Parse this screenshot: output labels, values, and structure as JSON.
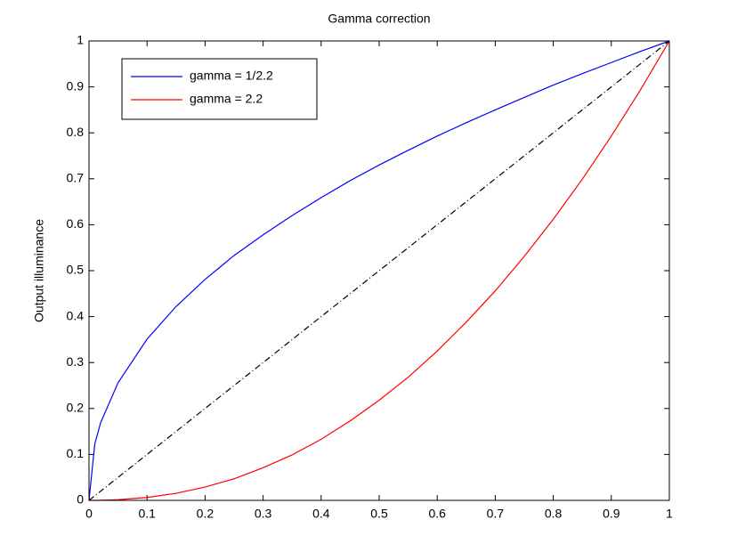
{
  "chart_data": {
    "type": "line",
    "title": "Gamma correction",
    "y_label": "Output illuminance",
    "x": [
      0,
      0.01,
      0.02,
      0.05,
      0.1,
      0.15,
      0.2,
      0.25,
      0.3,
      0.35,
      0.4,
      0.45,
      0.5,
      0.55,
      0.6,
      0.65,
      0.7,
      0.75,
      0.8,
      0.85,
      0.9,
      0.95,
      1
    ],
    "series": [
      {
        "name": "gamma = 1/2.2",
        "color": "#0000ff",
        "linestyle": "solid",
        "values": [
          0,
          0.123,
          0.169,
          0.256,
          0.351,
          0.422,
          0.481,
          0.533,
          0.578,
          0.62,
          0.659,
          0.696,
          0.73,
          0.762,
          0.793,
          0.822,
          0.85,
          0.877,
          0.904,
          0.929,
          0.953,
          0.977,
          1
        ]
      },
      {
        "name": "gamma = 2.2",
        "color": "#ff0000",
        "linestyle": "solid",
        "values": [
          0,
          0,
          0.0002,
          0.0014,
          0.0063,
          0.0154,
          0.029,
          0.047,
          0.071,
          0.099,
          0.133,
          0.173,
          0.218,
          0.268,
          0.325,
          0.388,
          0.456,
          0.531,
          0.612,
          0.699,
          0.793,
          0.893,
          1
        ]
      },
      {
        "color": "#000000",
        "linestyle": "dashdot",
        "values": [
          0,
          0.01,
          0.02,
          0.05,
          0.1,
          0.15,
          0.2,
          0.25,
          0.3,
          0.35,
          0.4,
          0.45,
          0.5,
          0.55,
          0.6,
          0.65,
          0.7,
          0.75,
          0.8,
          0.85,
          0.9,
          0.95,
          1
        ]
      }
    ],
    "xlim": [
      0,
      1
    ],
    "ylim": [
      0,
      1
    ],
    "xticks": [
      0,
      0.1,
      0.2,
      0.3,
      0.4,
      0.5,
      0.6,
      0.7,
      0.8,
      0.9,
      1
    ],
    "yticks": [
      0,
      0.1,
      0.2,
      0.3,
      0.4,
      0.5,
      0.6,
      0.7,
      0.8,
      0.9,
      1
    ],
    "grid": false,
    "legend": "upper left"
  }
}
